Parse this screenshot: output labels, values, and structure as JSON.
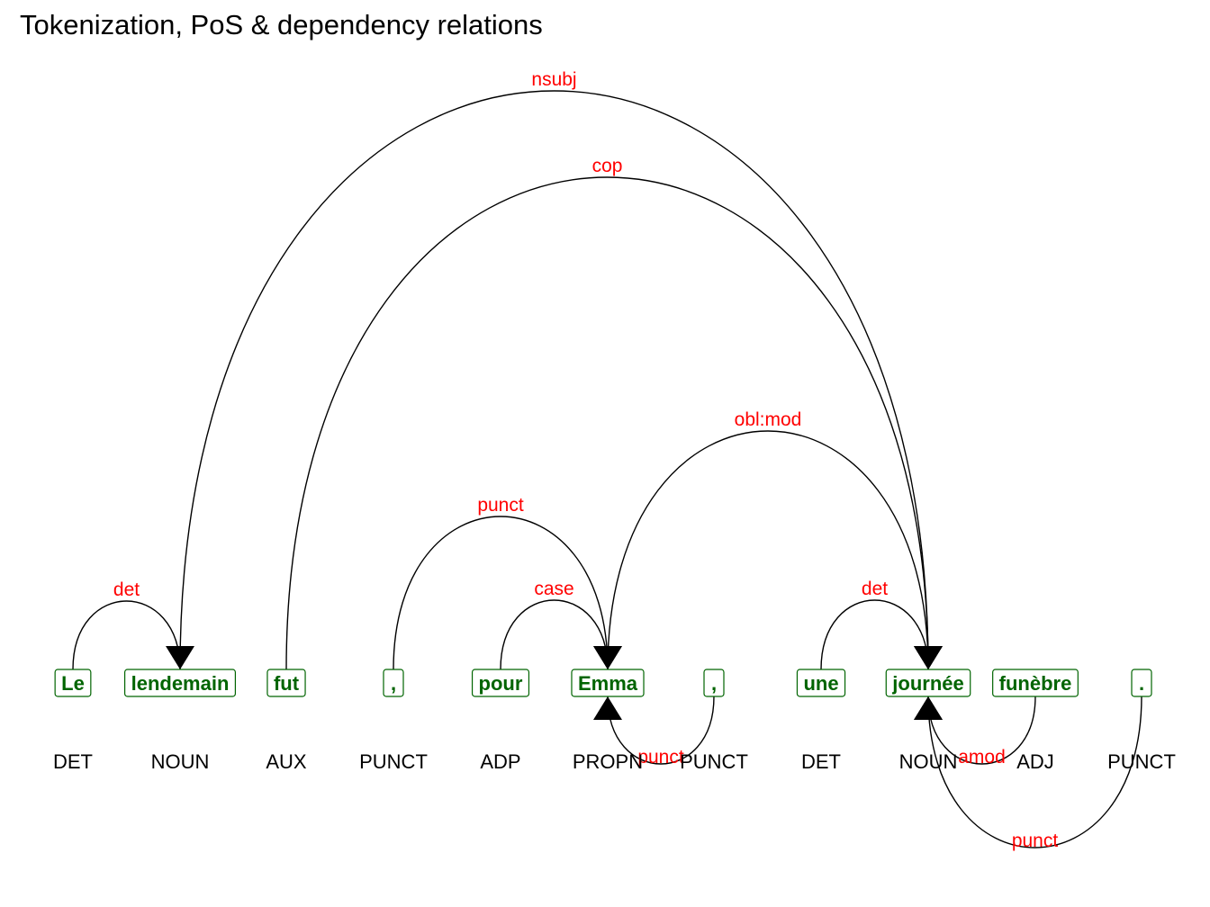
{
  "title": "Tokenization, PoS & dependency relations",
  "colors": {
    "token_text": "#006400",
    "token_border": "#006400",
    "relation_label": "#ff0000",
    "arc": "#000000",
    "pos": "#000000"
  },
  "tokens": [
    {
      "word": "Le",
      "pos": "DET"
    },
    {
      "word": "lendemain",
      "pos": "NOUN"
    },
    {
      "word": "fut",
      "pos": "AUX"
    },
    {
      "word": ",",
      "pos": "PUNCT"
    },
    {
      "word": "pour",
      "pos": "ADP"
    },
    {
      "word": "Emma",
      "pos": "PROPN"
    },
    {
      "word": ",",
      "pos": "PUNCT"
    },
    {
      "word": "une",
      "pos": "DET"
    },
    {
      "word": "journée",
      "pos": "NOUN"
    },
    {
      "word": "funèbre",
      "pos": "ADJ"
    },
    {
      "word": ".",
      "pos": "PUNCT"
    }
  ],
  "relations": [
    {
      "from": 0,
      "to": 1,
      "label": "det"
    },
    {
      "from": 1,
      "to": 8,
      "label": "nsubj"
    },
    {
      "from": 2,
      "to": 8,
      "label": "cop"
    },
    {
      "from": 3,
      "to": 5,
      "label": "punct"
    },
    {
      "from": 4,
      "to": 5,
      "label": "case"
    },
    {
      "from": 5,
      "to": 8,
      "label": "obl:mod"
    },
    {
      "from": 6,
      "to": 5,
      "label": "punct"
    },
    {
      "from": 7,
      "to": 8,
      "label": "det"
    },
    {
      "from": 9,
      "to": 8,
      "label": "amod"
    },
    {
      "from": 10,
      "to": 8,
      "label": "punct"
    }
  ]
}
